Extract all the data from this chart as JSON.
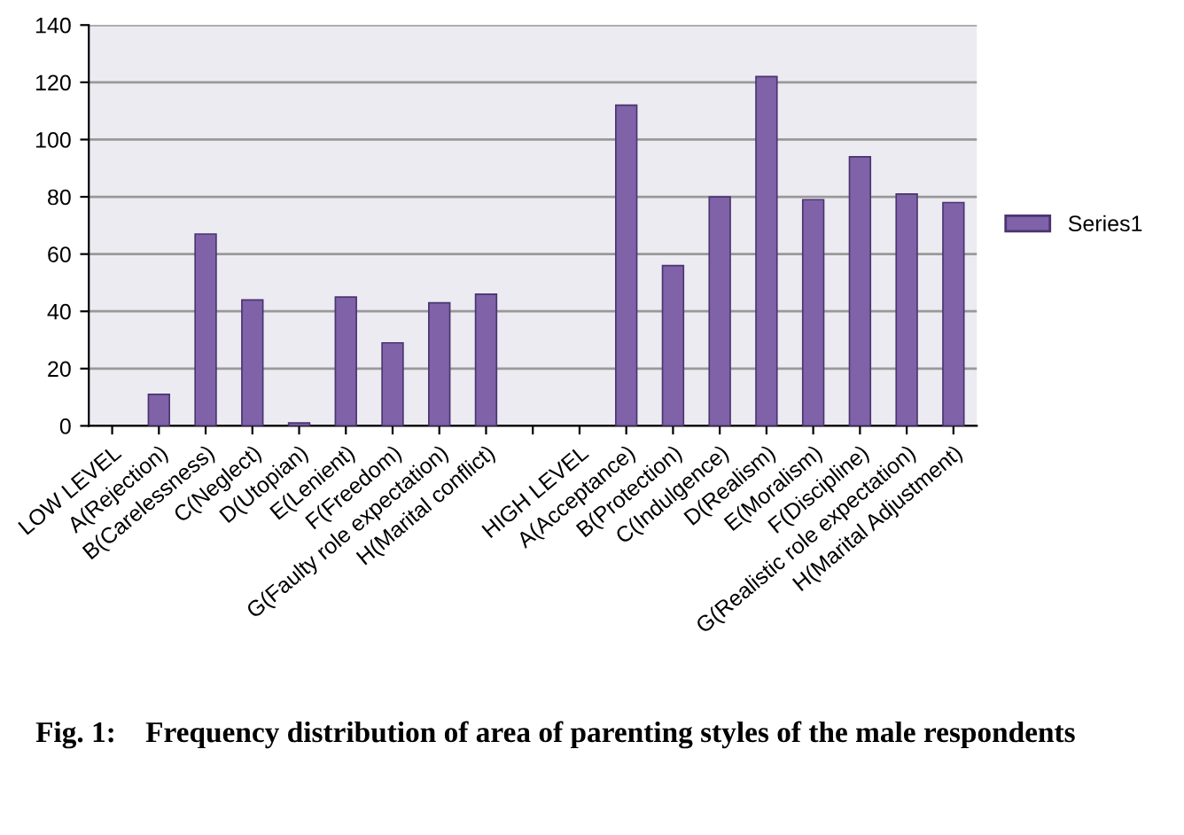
{
  "chart_data": {
    "type": "bar",
    "categories": [
      "LOW LEVEL",
      "A(Rejection)",
      "B(Carelessness)",
      "C(Neglect)",
      "D(Utopian)",
      "E(Lenient)",
      "F(Freedom)",
      "G(Faulty role expectation)",
      "H(Marital conflict)",
      null,
      "HIGH LEVEL",
      "A(Acceptance)",
      "B(Protection)",
      "C(Indulgence)",
      "D(Realism)",
      "E(Moralism)",
      "F(Discipline)",
      "G(Realistic role expectation)",
      "H(Marital Adjustment)"
    ],
    "series": [
      {
        "name": "Series1",
        "color": "#7f62a8",
        "values": [
          null,
          11,
          67,
          44,
          1,
          45,
          29,
          43,
          46,
          null,
          null,
          112,
          56,
          80,
          122,
          79,
          94,
          81,
          78
        ]
      }
    ],
    "ylim": [
      0,
      140
    ],
    "yticks": [
      0,
      20,
      40,
      60,
      80,
      100,
      120,
      140
    ],
    "grid": "y",
    "legend": "right",
    "annotations": [
      "Fig. 1:    Frequency distribution of area of parenting styles of the male respondents"
    ]
  }
}
